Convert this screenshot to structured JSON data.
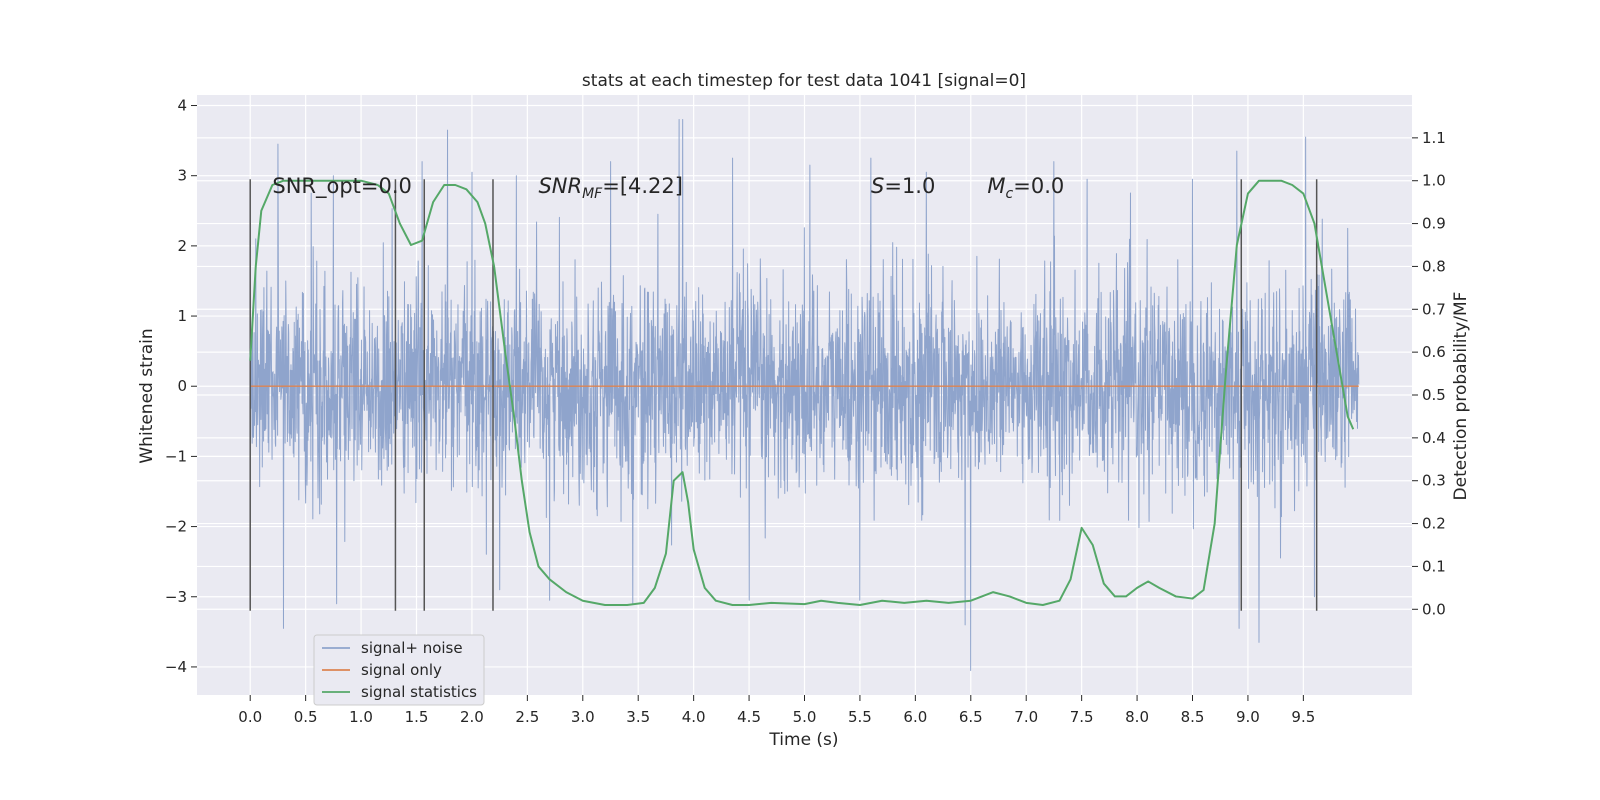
{
  "chart_data": {
    "type": "line",
    "title": "stats at each timestep for test data 1041 [signal=0]",
    "xlabel": "Time (s)",
    "ylabel": "Whitened strain",
    "ylabel_right": "Detection probability/MF",
    "xlim": [
      -0.48,
      10.48
    ],
    "ylim": [
      -4.4,
      4.15
    ],
    "ylim_right": [
      -0.2,
      1.2
    ],
    "x_ticks": [
      "0.0",
      "0.5",
      "1.0",
      "1.5",
      "2.0",
      "2.5",
      "3.0",
      "3.5",
      "4.0",
      "4.5",
      "5.0",
      "5.5",
      "6.0",
      "6.5",
      "7.0",
      "7.5",
      "8.0",
      "8.5",
      "9.0",
      "9.5"
    ],
    "y_ticks": [
      "−4",
      "−3",
      "−2",
      "−1",
      "0",
      "1",
      "2",
      "3",
      "4"
    ],
    "y_right_ticks": [
      "0.0",
      "0.1",
      "0.2",
      "0.3",
      "0.4",
      "0.5",
      "0.6",
      "0.7",
      "0.8",
      "0.9",
      "1.0",
      "1.1"
    ],
    "grid": true,
    "legend_position": "lower-left",
    "colors": {
      "background": "#eaeaf2",
      "grid": "#ffffff",
      "signal_noise": "#8fa4cc",
      "signal_only": "#dd8452",
      "signal_statistics": "#55a868",
      "markers": "#555555"
    },
    "annotations": [
      {
        "text": "SNR_opt=0.0",
        "x": 0.2,
        "y": 2.85
      },
      {
        "text": "SNR_MF=[4.22]",
        "x": 2.6,
        "y": 2.85
      },
      {
        "text": "S=1.0",
        "x": 5.6,
        "y": 2.85
      },
      {
        "text": "M_c=0.0",
        "x": 6.65,
        "y": 2.85
      }
    ],
    "markers_x": [
      0.0,
      1.31,
      1.57,
      2.19,
      8.94,
      9.62
    ],
    "markers_y_range": [
      -3.2,
      2.95
    ],
    "series": [
      {
        "name": "signal+ noise",
        "axis": "left",
        "duration": 10.0,
        "envelope": {
          "typical_upper": 1.3,
          "typical_lower": -1.25,
          "max": 3.8,
          "min": -4.05
        },
        "peaks": [
          {
            "x": 0.05,
            "y": 2.1
          },
          {
            "x": 0.25,
            "y": 3.45
          },
          {
            "x": 0.3,
            "y": -3.45
          },
          {
            "x": 0.55,
            "y": 2.75
          },
          {
            "x": 0.75,
            "y": 3.0
          },
          {
            "x": 0.78,
            "y": -3.1
          },
          {
            "x": 1.55,
            "y": 3.2
          },
          {
            "x": 1.78,
            "y": 3.65
          },
          {
            "x": 2.0,
            "y": 3.05
          },
          {
            "x": 2.25,
            "y": -2.9
          },
          {
            "x": 2.4,
            "y": 3.0
          },
          {
            "x": 2.7,
            "y": -3.05
          },
          {
            "x": 3.25,
            "y": 3.2
          },
          {
            "x": 3.45,
            "y": -3.1
          },
          {
            "x": 3.87,
            "y": 3.8
          },
          {
            "x": 3.9,
            "y": 3.8
          },
          {
            "x": 4.35,
            "y": 3.25
          },
          {
            "x": 4.5,
            "y": -3.05
          },
          {
            "x": 5.05,
            "y": 3.15
          },
          {
            "x": 5.5,
            "y": -3.05
          },
          {
            "x": 5.6,
            "y": 3.25
          },
          {
            "x": 6.1,
            "y": 3.05
          },
          {
            "x": 6.45,
            "y": -3.4
          },
          {
            "x": 6.5,
            "y": -4.05
          },
          {
            "x": 7.25,
            "y": 3.2
          },
          {
            "x": 7.55,
            "y": 2.95
          },
          {
            "x": 8.5,
            "y": 2.95
          },
          {
            "x": 8.9,
            "y": 3.35
          },
          {
            "x": 8.92,
            "y": -3.45
          },
          {
            "x": 9.1,
            "y": -3.65
          },
          {
            "x": 9.52,
            "y": 3.55
          },
          {
            "x": 9.6,
            "y": -3.0
          },
          {
            "x": 9.9,
            "y": 2.25
          }
        ]
      },
      {
        "name": "signal only",
        "axis": "left",
        "x": [
          0.0,
          10.0
        ],
        "y": [
          0.0,
          0.0
        ]
      },
      {
        "name": "signal statistics",
        "axis": "right",
        "x": [
          0.0,
          0.05,
          0.1,
          0.2,
          0.3,
          0.5,
          0.8,
          1.0,
          1.15,
          1.25,
          1.35,
          1.45,
          1.55,
          1.65,
          1.75,
          1.85,
          1.95,
          2.05,
          2.12,
          2.2,
          2.25,
          2.3,
          2.38,
          2.45,
          2.52,
          2.6,
          2.7,
          2.85,
          3.0,
          3.2,
          3.4,
          3.55,
          3.65,
          3.75,
          3.82,
          3.9,
          3.95,
          4.0,
          4.1,
          4.2,
          4.35,
          4.5,
          4.7,
          5.0,
          5.15,
          5.3,
          5.5,
          5.7,
          5.9,
          6.1,
          6.3,
          6.5,
          6.6,
          6.7,
          6.85,
          7.0,
          7.15,
          7.3,
          7.4,
          7.5,
          7.6,
          7.7,
          7.8,
          7.9,
          8.0,
          8.1,
          8.2,
          8.35,
          8.5,
          8.6,
          8.7,
          8.8,
          8.9,
          9.0,
          9.1,
          9.2,
          9.3,
          9.4,
          9.5,
          9.6,
          9.7,
          9.8,
          9.9,
          9.95
        ],
        "y": [
          0.58,
          0.8,
          0.93,
          0.99,
          1.0,
          1.0,
          1.0,
          1.0,
          0.99,
          0.97,
          0.9,
          0.85,
          0.86,
          0.95,
          0.99,
          0.99,
          0.98,
          0.95,
          0.9,
          0.8,
          0.7,
          0.6,
          0.45,
          0.3,
          0.18,
          0.1,
          0.07,
          0.04,
          0.02,
          0.01,
          0.01,
          0.015,
          0.05,
          0.13,
          0.3,
          0.32,
          0.25,
          0.14,
          0.05,
          0.02,
          0.01,
          0.01,
          0.015,
          0.012,
          0.02,
          0.015,
          0.01,
          0.02,
          0.015,
          0.02,
          0.015,
          0.02,
          0.03,
          0.04,
          0.03,
          0.015,
          0.01,
          0.02,
          0.07,
          0.19,
          0.15,
          0.06,
          0.03,
          0.03,
          0.05,
          0.065,
          0.05,
          0.03,
          0.025,
          0.045,
          0.2,
          0.55,
          0.85,
          0.97,
          1.0,
          1.0,
          1.0,
          0.99,
          0.97,
          0.9,
          0.75,
          0.6,
          0.45,
          0.42
        ]
      }
    ]
  }
}
